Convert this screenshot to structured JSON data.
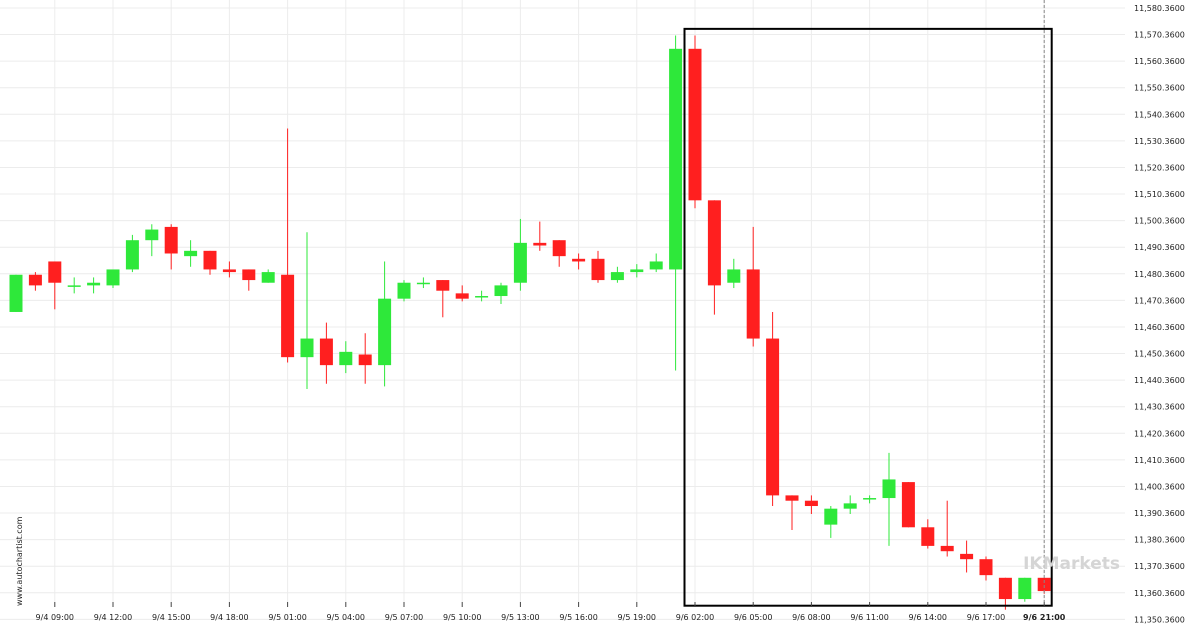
{
  "watermark": "www.autochartist.com",
  "brand_text": "IKMarkets",
  "colors": {
    "up": "#2ee83a",
    "down": "#ff1f1f",
    "grid": "#ececec",
    "box": "#000000",
    "vline": "#888888"
  },
  "chart_data": {
    "type": "candlestick",
    "ylim": [
      11346.36,
      11583.36
    ],
    "y_ticks": [
      "11,350.3600",
      "11,360.3600",
      "11,370.3600",
      "11,380.3600",
      "11,390.3600",
      "11,400.3600",
      "11,410.3600",
      "11,420.3600",
      "11,430.3600",
      "11,440.3600",
      "11,450.3600",
      "11,460.3600",
      "11,470.3600",
      "11,480.3600",
      "11,490.3600",
      "11,500.3600",
      "11,510.3600",
      "11,520.3600",
      "11,530.3600",
      "11,540.3600",
      "11,550.3600",
      "11,560.3600",
      "11,570.3600",
      "11,580.3600"
    ],
    "x_ticks": [
      {
        "i": 2,
        "label": "9/4 09:00"
      },
      {
        "i": 5,
        "label": "9/4 12:00"
      },
      {
        "i": 8,
        "label": "9/4 15:00"
      },
      {
        "i": 11,
        "label": "9/4 18:00"
      },
      {
        "i": 14,
        "label": "9/5 01:00"
      },
      {
        "i": 17,
        "label": "9/5 04:00"
      },
      {
        "i": 20,
        "label": "9/5 07:00"
      },
      {
        "i": 23,
        "label": "9/5 10:00"
      },
      {
        "i": 26,
        "label": "9/5 13:00"
      },
      {
        "i": 29,
        "label": "9/5 16:00"
      },
      {
        "i": 32,
        "label": "9/5 19:00"
      },
      {
        "i": 35,
        "label": "9/6 02:00"
      },
      {
        "i": 38,
        "label": "9/6 05:00"
      },
      {
        "i": 41,
        "label": "9/6 08:00"
      },
      {
        "i": 44,
        "label": "9/6 11:00"
      },
      {
        "i": 47,
        "label": "9/6 14:00"
      },
      {
        "i": 50,
        "label": "9/6 17:00"
      },
      {
        "i": 53,
        "label": "9/6 21:00",
        "bold": true
      }
    ],
    "candles": [
      {
        "o": 11466,
        "h": 11480,
        "l": 11466,
        "c": 11480
      },
      {
        "o": 11480,
        "h": 11481,
        "l": 11474,
        "c": 11476
      },
      {
        "o": 11485,
        "h": 11485,
        "l": 11467,
        "c": 11477
      },
      {
        "o": 11476,
        "h": 11479,
        "l": 11473,
        "c": 11476
      },
      {
        "o": 11476,
        "h": 11479,
        "l": 11473,
        "c": 11477
      },
      {
        "o": 11476,
        "h": 11482,
        "l": 11475,
        "c": 11482
      },
      {
        "o": 11482,
        "h": 11495,
        "l": 11481,
        "c": 11493
      },
      {
        "o": 11493,
        "h": 11499,
        "l": 11487,
        "c": 11497
      },
      {
        "o": 11498,
        "h": 11499,
        "l": 11482,
        "c": 11488
      },
      {
        "o": 11487,
        "h": 11493,
        "l": 11483,
        "c": 11489
      },
      {
        "o": 11489,
        "h": 11489,
        "l": 11480,
        "c": 11482
      },
      {
        "o": 11482,
        "h": 11485,
        "l": 11479,
        "c": 11481
      },
      {
        "o": 11482,
        "h": 11482,
        "l": 11474,
        "c": 11478
      },
      {
        "o": 11477,
        "h": 11482,
        "l": 11477,
        "c": 11481
      },
      {
        "o": 11480,
        "h": 11535,
        "l": 11447,
        "c": 11449
      },
      {
        "o": 11449,
        "h": 11496,
        "l": 11437,
        "c": 11456
      },
      {
        "o": 11456,
        "h": 11462,
        "l": 11439,
        "c": 11446
      },
      {
        "o": 11446,
        "h": 11455,
        "l": 11443,
        "c": 11451
      },
      {
        "o": 11450,
        "h": 11458,
        "l": 11439,
        "c": 11446
      },
      {
        "o": 11446,
        "h": 11485,
        "l": 11438,
        "c": 11471
      },
      {
        "o": 11471,
        "h": 11478,
        "l": 11470,
        "c": 11477
      },
      {
        "o": 11477,
        "h": 11479,
        "l": 11475,
        "c": 11477
      },
      {
        "o": 11478,
        "h": 11478,
        "l": 11464,
        "c": 11474
      },
      {
        "o": 11473,
        "h": 11476,
        "l": 11470,
        "c": 11471
      },
      {
        "o": 11472,
        "h": 11474,
        "l": 11470,
        "c": 11472
      },
      {
        "o": 11472,
        "h": 11477,
        "l": 11469,
        "c": 11476
      },
      {
        "o": 11477,
        "h": 11501,
        "l": 11474,
        "c": 11492
      },
      {
        "o": 11492,
        "h": 11500,
        "l": 11489,
        "c": 11491
      },
      {
        "o": 11493,
        "h": 11493,
        "l": 11483,
        "c": 11487
      },
      {
        "o": 11486,
        "h": 11488,
        "l": 11482,
        "c": 11485
      },
      {
        "o": 11486,
        "h": 11489,
        "l": 11477,
        "c": 11478
      },
      {
        "o": 11478,
        "h": 11483,
        "l": 11477,
        "c": 11481
      },
      {
        "o": 11481,
        "h": 11484,
        "l": 11479,
        "c": 11482
      },
      {
        "o": 11482,
        "h": 11488,
        "l": 11481,
        "c": 11485
      },
      {
        "o": 11482,
        "h": 11570,
        "l": 11444,
        "c": 11565
      },
      {
        "o": 11565,
        "h": 11570,
        "l": 11505,
        "c": 11508
      },
      {
        "o": 11508,
        "h": 11508,
        "l": 11465,
        "c": 11476
      },
      {
        "o": 11477,
        "h": 11486,
        "l": 11475,
        "c": 11482
      },
      {
        "o": 11482,
        "h": 11498,
        "l": 11453,
        "c": 11456
      },
      {
        "o": 11456,
        "h": 11466,
        "l": 11393,
        "c": 11397
      },
      {
        "o": 11397,
        "h": 11397,
        "l": 11384,
        "c": 11395
      },
      {
        "o": 11395,
        "h": 11397,
        "l": 11390,
        "c": 11393
      },
      {
        "o": 11386,
        "h": 11393,
        "l": 11381,
        "c": 11392
      },
      {
        "o": 11392,
        "h": 11397,
        "l": 11390,
        "c": 11394
      },
      {
        "o": 11396,
        "h": 11397,
        "l": 11394,
        "c": 11396
      },
      {
        "o": 11396,
        "h": 11413,
        "l": 11378,
        "c": 11403
      },
      {
        "o": 11402,
        "h": 11402,
        "l": 11385,
        "c": 11385
      },
      {
        "o": 11385,
        "h": 11388,
        "l": 11377,
        "c": 11378
      },
      {
        "o": 11378,
        "h": 11395,
        "l": 11374,
        "c": 11376
      },
      {
        "o": 11375,
        "h": 11380,
        "l": 11368,
        "c": 11373
      },
      {
        "o": 11373,
        "h": 11374,
        "l": 11365,
        "c": 11367
      },
      {
        "o": 11366,
        "h": 11366,
        "l": 11354,
        "c": 11358
      },
      {
        "o": 11358,
        "h": 11366,
        "l": 11357,
        "c": 11366
      },
      {
        "o": 11366,
        "h": 11366,
        "l": 11360,
        "c": 11361
      }
    ],
    "pattern_box": {
      "start_index": 35,
      "end_index": 53,
      "low": 11355.5,
      "high": 11572.5
    }
  }
}
